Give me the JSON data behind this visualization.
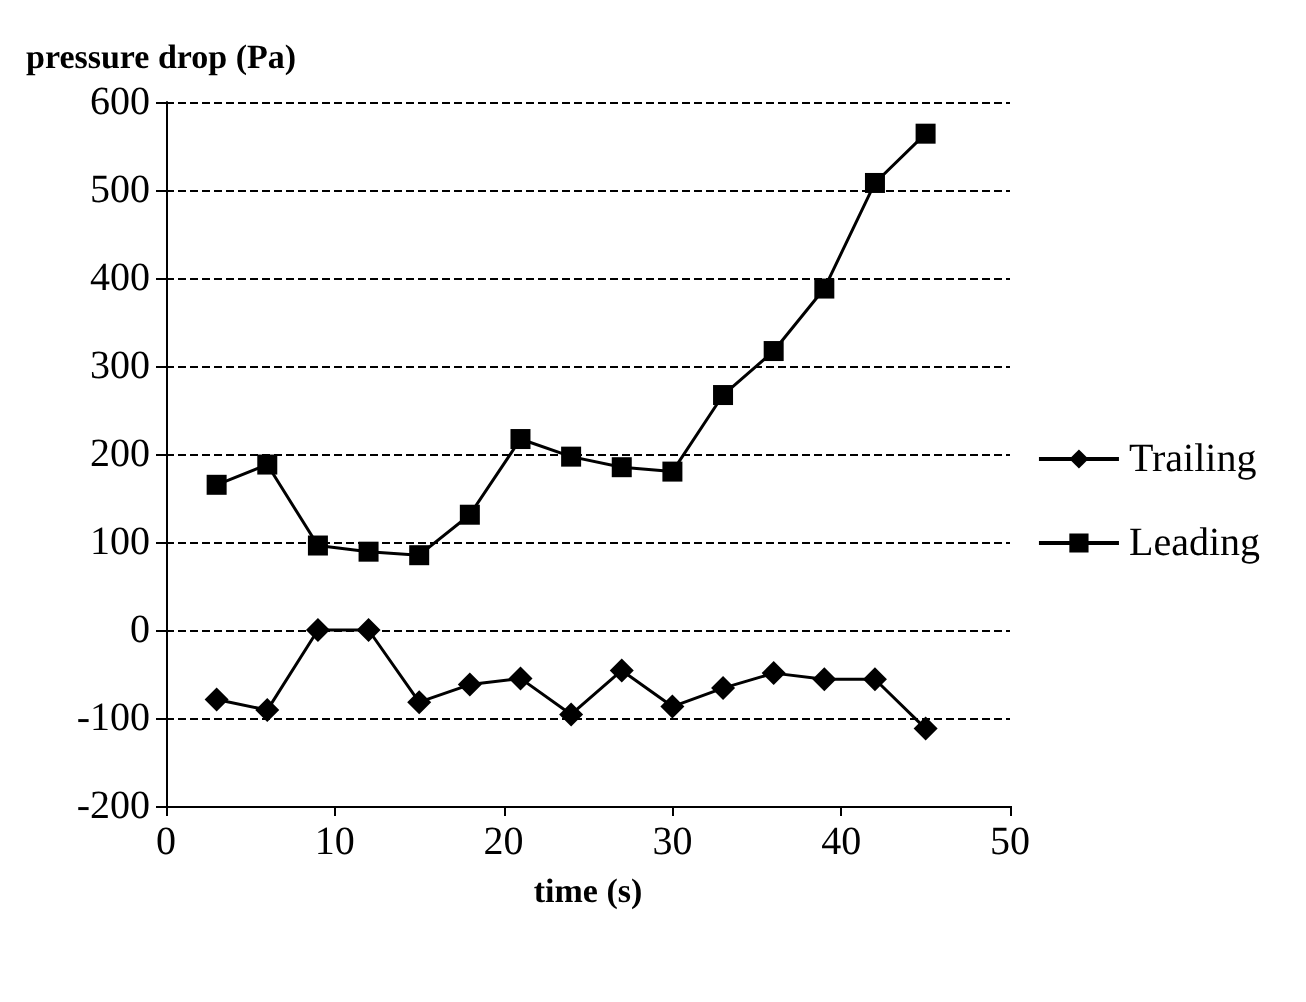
{
  "chart_data": {
    "type": "line",
    "ylabel": "pressure drop (Pa)",
    "xlabel": "time (s)",
    "x": [
      3,
      6,
      9,
      12,
      15,
      18,
      21,
      24,
      27,
      30,
      33,
      36,
      39,
      42,
      45
    ],
    "series": [
      {
        "name": "Trailing",
        "color": "#000000",
        "marker": "diamond",
        "values": [
          -79,
          -91,
          0,
          0,
          -82,
          -62,
          -55,
          -96,
          -46,
          -87,
          -66,
          -49,
          -56,
          -56,
          -112
        ]
      },
      {
        "name": "Leading",
        "color": "#000000",
        "marker": "square",
        "values": [
          165,
          188,
          96,
          89,
          85,
          131,
          217,
          197,
          185,
          180,
          267,
          317,
          388,
          508,
          564
        ]
      }
    ],
    "xlim": [
      0,
      50
    ],
    "xticks": [
      0,
      10,
      20,
      30,
      40,
      50
    ],
    "ylim": [
      -200,
      600
    ],
    "yticks": [
      -200,
      -100,
      0,
      100,
      200,
      300,
      400,
      500,
      600
    ],
    "grid": "y",
    "legend": "right",
    "line_style": "solid"
  }
}
